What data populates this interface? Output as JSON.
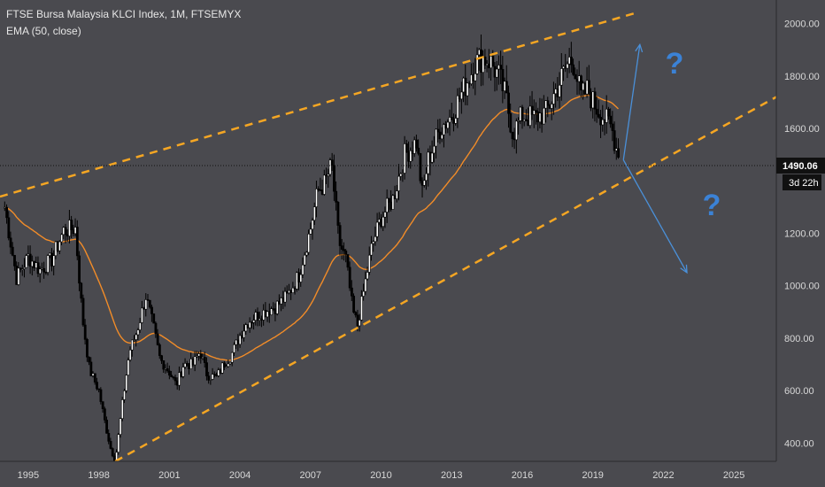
{
  "legend": {
    "title": "FTSE Bursa Malaysia KLCI Index, 1M, FTSEMYX",
    "indicator": "EMA (50, close)"
  },
  "price_tag": {
    "last_price": "1490.06",
    "countdown": "3d 22h"
  },
  "annotations": {
    "question_mark": "?"
  },
  "colors": {
    "background": "#4a4a4f",
    "candle_up": "#ffffff",
    "candle_down": "#000000",
    "ema": "#f28c28",
    "channel": "#f5a623",
    "arrow": "#4a90d9",
    "question": "#3b82d6"
  },
  "chart_data": {
    "type": "candlestick",
    "symbol": "FTSEMYX",
    "interval": "1M",
    "x_ticks": [
      "1995",
      "1998",
      "2001",
      "2004",
      "2007",
      "2010",
      "2013",
      "2016",
      "2019",
      "2022",
      "2025"
    ],
    "y_ticks": [
      "400.00",
      "600.00",
      "800.00",
      "1000.00",
      "1200.00",
      "1400.00",
      "1600.00",
      "1800.00",
      "2000.00"
    ],
    "ylim": [
      330,
      2090
    ],
    "xlim": [
      1993.8,
      2026.8
    ],
    "last_price": 1490.06,
    "series": [
      {
        "name": "price",
        "x": [
          1994.0,
          1994.5,
          1995.0,
          1995.5,
          1996.0,
          1996.5,
          1997.0,
          1997.3,
          1997.6,
          1998.0,
          1998.3,
          1998.5,
          1998.7,
          1999.0,
          1999.3,
          1999.6,
          2000.0,
          2000.3,
          2000.6,
          2001.0,
          2001.3,
          2001.6,
          2002.0,
          2002.3,
          2002.6,
          2003.0,
          2003.3,
          2003.6,
          2004.0,
          2004.3,
          2004.6,
          2005.0,
          2005.5,
          2006.0,
          2006.5,
          2007.0,
          2007.3,
          2007.6,
          2007.9,
          2008.2,
          2008.5,
          2008.8,
          2009.0,
          2009.3,
          2009.6,
          2010.0,
          2010.5,
          2011.0,
          2011.5,
          2011.75,
          2012.0,
          2012.5,
          2013.0,
          2013.5,
          2014.0,
          2014.3,
          2014.6,
          2015.0,
          2015.3,
          2015.6,
          2016.0,
          2016.5,
          2017.0,
          2017.5,
          2018.0,
          2018.2,
          2018.5,
          2018.8,
          2019.0,
          2019.4,
          2019.8,
          2020.1
        ],
        "y": [
          1300,
          1030,
          1110,
          1060,
          1100,
          1210,
          1220,
          880,
          680,
          600,
          460,
          380,
          330,
          550,
          750,
          820,
          960,
          850,
          720,
          670,
          620,
          700,
          700,
          750,
          660,
          650,
          700,
          730,
          810,
          860,
          880,
          900,
          920,
          960,
          1040,
          1220,
          1360,
          1390,
          1460,
          1170,
          1100,
          900,
          850,
          1000,
          1150,
          1260,
          1330,
          1500,
          1550,
          1350,
          1480,
          1600,
          1650,
          1750,
          1850,
          1870,
          1860,
          1800,
          1720,
          1580,
          1650,
          1640,
          1660,
          1760,
          1860,
          1850,
          1720,
          1750,
          1700,
          1650,
          1600,
          1490
        ],
        "ema_period": 50
      }
    ],
    "channel_lines": [
      {
        "name": "upper",
        "points": [
          [
            1993.8,
            1340
          ],
          [
            2020.8,
            2040
          ]
        ]
      },
      {
        "name": "lower",
        "points": [
          [
            1998.7,
            330
          ],
          [
            2026.8,
            1720
          ]
        ]
      }
    ],
    "projections": [
      {
        "name": "up",
        "from": [
          2020.3,
          1480
        ],
        "to": [
          2021.0,
          1920
        ]
      },
      {
        "name": "down",
        "from": [
          2020.3,
          1480
        ],
        "to": [
          2023.0,
          1050
        ]
      }
    ]
  }
}
